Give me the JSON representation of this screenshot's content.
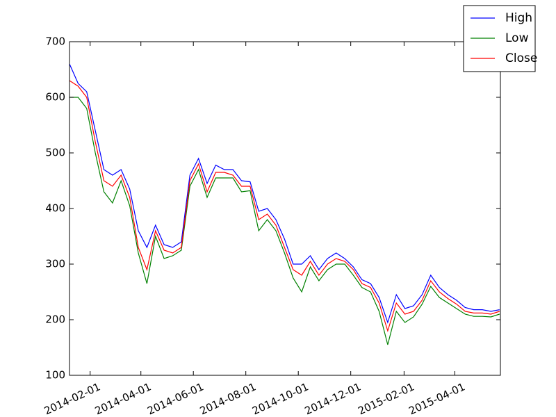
{
  "chart_data": {
    "type": "line",
    "x": [
      "2014-01-08",
      "2014-01-18",
      "2014-01-28",
      "2014-02-07",
      "2014-02-17",
      "2014-02-27",
      "2014-03-09",
      "2014-03-19",
      "2014-03-29",
      "2014-04-08",
      "2014-04-18",
      "2014-04-28",
      "2014-05-08",
      "2014-05-18",
      "2014-05-28",
      "2014-06-07",
      "2014-06-17",
      "2014-06-27",
      "2014-07-07",
      "2014-07-17",
      "2014-07-27",
      "2014-08-06",
      "2014-08-16",
      "2014-08-26",
      "2014-09-05",
      "2014-09-15",
      "2014-09-25",
      "2014-10-05",
      "2014-10-15",
      "2014-10-25",
      "2014-11-04",
      "2014-11-14",
      "2014-11-24",
      "2014-12-04",
      "2014-12-14",
      "2014-12-24",
      "2015-01-03",
      "2015-01-13",
      "2015-01-23",
      "2015-02-02",
      "2015-02-12",
      "2015-02-22",
      "2015-03-04",
      "2015-03-14",
      "2015-03-24",
      "2015-04-03",
      "2015-04-13",
      "2015-04-23",
      "2015-05-03",
      "2015-05-13",
      "2015-05-23"
    ],
    "series": [
      {
        "name": "High",
        "color": "#0000ff",
        "values": [
          660,
          625,
          610,
          540,
          470,
          460,
          470,
          435,
          360,
          330,
          370,
          335,
          330,
          340,
          460,
          490,
          445,
          478,
          470,
          470,
          450,
          448,
          395,
          400,
          380,
          345,
          300,
          300,
          315,
          290,
          310,
          320,
          310,
          295,
          272,
          265,
          240,
          195,
          245,
          220,
          225,
          245,
          280,
          258,
          245,
          235,
          222,
          218,
          218,
          215,
          218
        ]
      },
      {
        "name": "Low",
        "color": "#008000",
        "values": [
          600,
          600,
          580,
          500,
          430,
          410,
          450,
          405,
          320,
          265,
          350,
          310,
          315,
          325,
          440,
          470,
          420,
          455,
          455,
          455,
          430,
          432,
          360,
          380,
          360,
          320,
          275,
          250,
          295,
          270,
          290,
          300,
          300,
          280,
          258,
          250,
          215,
          155,
          215,
          195,
          205,
          228,
          260,
          240,
          230,
          220,
          210,
          206,
          206,
          205,
          210
        ]
      },
      {
        "name": "Close",
        "color": "#ff0000",
        "values": [
          630,
          620,
          600,
          520,
          450,
          440,
          460,
          420,
          330,
          290,
          360,
          325,
          320,
          330,
          450,
          480,
          430,
          465,
          465,
          460,
          440,
          440,
          380,
          390,
          370,
          330,
          290,
          280,
          305,
          280,
          300,
          310,
          305,
          290,
          265,
          258,
          230,
          180,
          230,
          210,
          215,
          235,
          270,
          250,
          238,
          228,
          215,
          212,
          212,
          210,
          215
        ]
      }
    ],
    "xlim": [
      "2014-01-08",
      "2015-05-24"
    ],
    "xticks": [
      "2014-02-01",
      "2014-04-01",
      "2014-06-01",
      "2014-08-01",
      "2014-10-01",
      "2014-12-01",
      "2015-02-01",
      "2015-04-01"
    ],
    "ylim": [
      100,
      700
    ],
    "yticks": [
      100,
      200,
      300,
      400,
      500,
      600,
      700
    ],
    "legend": "upper right"
  }
}
